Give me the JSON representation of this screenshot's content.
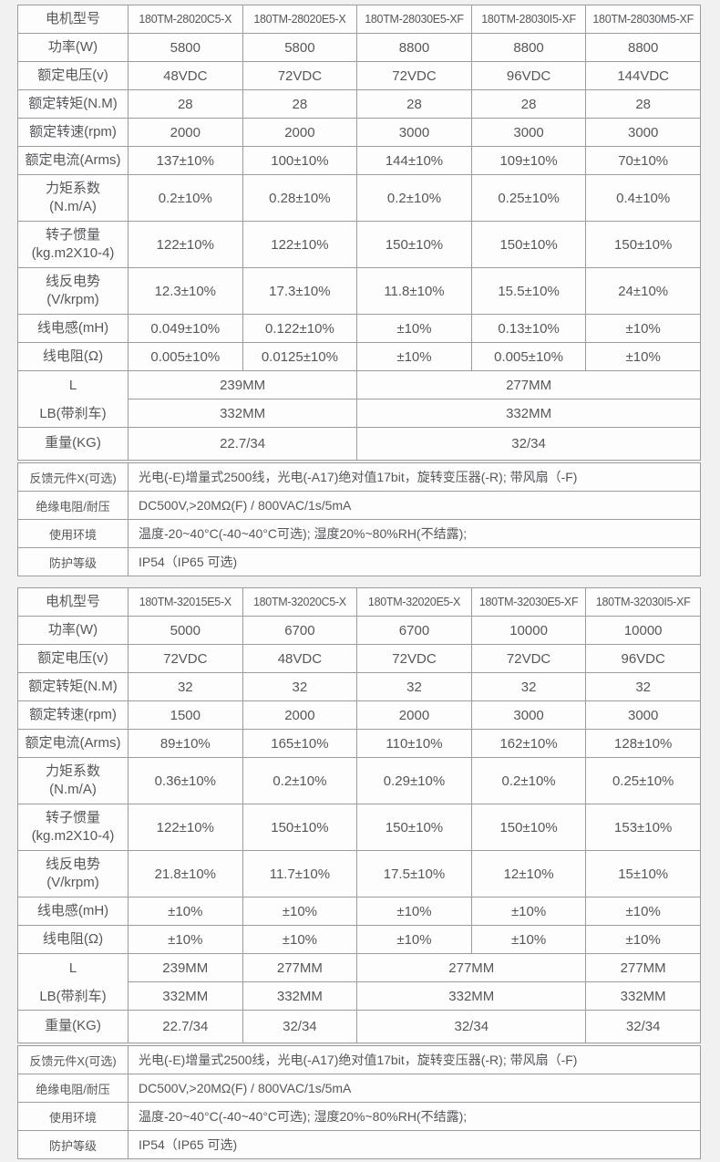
{
  "colors": {
    "page_bg": "#f1f1f2",
    "cell_bg": "#fdfdfd",
    "border": "#9c9c9c",
    "text": "#55575b"
  },
  "row_labels": {
    "model": "电机型号",
    "specs": [
      "功率(W)",
      "额定电压(v)",
      "额定转矩(N.M)",
      "额定转速(rpm)",
      "额定电流(Arms)",
      "力矩系数\n(N.m/A)",
      "转子惯量\n(kg.m2X10-4)",
      "线反电势\n(V/krpm)",
      "线电感(mH)",
      "线电阻(Ω)"
    ],
    "dim_l": "L",
    "dim_lb": "LB(带刹车)",
    "weight": "重量(KG)"
  },
  "tables": [
    {
      "models": [
        "180TM-28020C5-X",
        "180TM-28020E5-X",
        "180TM-28030E5-XF",
        "180TM-28030I5-XF",
        "180TM-28030M5-XF"
      ],
      "specs": [
        [
          "5800",
          "5800",
          "8800",
          "8800",
          "8800"
        ],
        [
          "48VDC",
          "72VDC",
          "72VDC",
          "96VDC",
          "144VDC"
        ],
        [
          "28",
          "28",
          "28",
          "28",
          "28"
        ],
        [
          "2000",
          "2000",
          "3000",
          "3000",
          "3000"
        ],
        [
          "137±10%",
          "100±10%",
          "144±10%",
          "109±10%",
          "70±10%"
        ],
        [
          "0.2±10%",
          "0.28±10%",
          "0.2±10%",
          "0.25±10%",
          "0.4±10%"
        ],
        [
          "122±10%",
          "122±10%",
          "150±10%",
          "150±10%",
          "150±10%"
        ],
        [
          "12.3±10%",
          "17.3±10%",
          "11.8±10%",
          "15.5±10%",
          "24±10%"
        ],
        [
          "0.049±10%",
          "0.122±10%",
          "±10%",
          "0.13±10%",
          "±10%"
        ],
        [
          "0.005±10%",
          "0.0125±10%",
          "±10%",
          "0.005±10%",
          "±10%"
        ]
      ],
      "dims": {
        "spans": [
          2,
          3
        ],
        "l": [
          "239MM",
          "277MM"
        ],
        "lb": [
          "332MM",
          "332MM"
        ],
        "weight": [
          "22.7/34",
          "32/34"
        ]
      },
      "notes": [
        {
          "label": "反馈元件X(可选)",
          "value": "光电(-E)增量式2500线，光电(-A17)绝对值17bit，旋转变压器(-R); 带风扇（-F)"
        },
        {
          "label": "绝缘电阻/耐压",
          "value": "DC500V,>20MΩ(F) / 800VAC/1s/5mA"
        },
        {
          "label": "使用环境",
          "value": "温度-20~40°C(-40~40°C可选); 湿度20%~80%RH(不结露);"
        },
        {
          "label": "防护等级",
          "value": "IP54（IP65 可选)"
        }
      ]
    },
    {
      "models": [
        "180TM-32015E5-X",
        "180TM-32020C5-X",
        "180TM-32020E5-X",
        "180TM-32030E5-XF",
        "180TM-32030I5-XF"
      ],
      "specs": [
        [
          "5000",
          "6700",
          "6700",
          "10000",
          "10000"
        ],
        [
          "72VDC",
          "48VDC",
          "72VDC",
          "72VDC",
          "96VDC"
        ],
        [
          "32",
          "32",
          "32",
          "32",
          "32"
        ],
        [
          "1500",
          "2000",
          "2000",
          "3000",
          "3000"
        ],
        [
          "89±10%",
          "165±10%",
          "110±10%",
          "162±10%",
          "128±10%"
        ],
        [
          "0.36±10%",
          "0.2±10%",
          "0.29±10%",
          "0.2±10%",
          "0.25±10%"
        ],
        [
          "122±10%",
          "150±10%",
          "150±10%",
          "150±10%",
          "153±10%"
        ],
        [
          "21.8±10%",
          "11.7±10%",
          "17.5±10%",
          "12±10%",
          "15±10%"
        ],
        [
          "±10%",
          "±10%",
          "±10%",
          "±10%",
          "±10%"
        ],
        [
          "±10%",
          "±10%",
          "±10%",
          "±10%",
          "±10%"
        ]
      ],
      "dims": {
        "spans": [
          1,
          1,
          2,
          1
        ],
        "l": [
          "239MM",
          "277MM",
          "277MM",
          "277MM"
        ],
        "lb": [
          "332MM",
          "332MM",
          "332MM",
          "332MM"
        ],
        "weight": [
          "22.7/34",
          "32/34",
          "32/34",
          "32/34"
        ]
      },
      "notes": [
        {
          "label": "反馈元件X(可选)",
          "value": "光电(-E)增量式2500线，光电(-A17)绝对值17bit，旋转变压器(-R); 带风扇（-F)"
        },
        {
          "label": "绝缘电阻/耐压",
          "value": "DC500V,>20MΩ(F) / 800VAC/1s/5mA"
        },
        {
          "label": "使用环境",
          "value": "温度-20~40°C(-40~40°C可选); 湿度20%~80%RH(不结露);"
        },
        {
          "label": "防护等级",
          "value": "IP54（IP65 可选)"
        }
      ]
    }
  ]
}
